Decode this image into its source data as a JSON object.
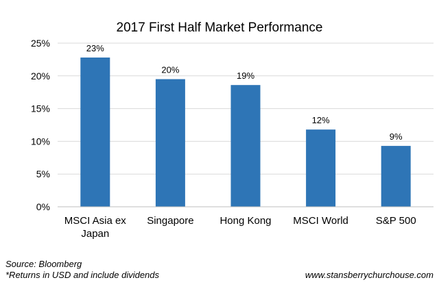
{
  "chart_data": {
    "type": "bar",
    "title": "2017 First Half Market Performance",
    "xlabel": "",
    "ylabel": "",
    "ylim": [
      0,
      25
    ],
    "yticks": [
      "0%",
      "5%",
      "10%",
      "15%",
      "20%",
      "25%"
    ],
    "ytick_values": [
      0,
      5,
      10,
      15,
      20,
      25
    ],
    "categories": [
      [
        "MSCI Asia ex",
        "Japan"
      ],
      [
        "Singapore"
      ],
      [
        "Hong Kong"
      ],
      [
        "MSCI World"
      ],
      [
        "S&P 500"
      ]
    ],
    "values": [
      22.8,
      19.5,
      18.6,
      11.8,
      9.3
    ],
    "data_labels": [
      "23%",
      "20%",
      "19%",
      "12%",
      "9%"
    ],
    "bar_color": "#2E75B6",
    "grid": true,
    "legend": "none"
  },
  "footer": {
    "source": "Source: Bloomberg",
    "returns_note": "*Returns in USD and include dividends",
    "website": "www.stansberrychurchouse.com"
  }
}
